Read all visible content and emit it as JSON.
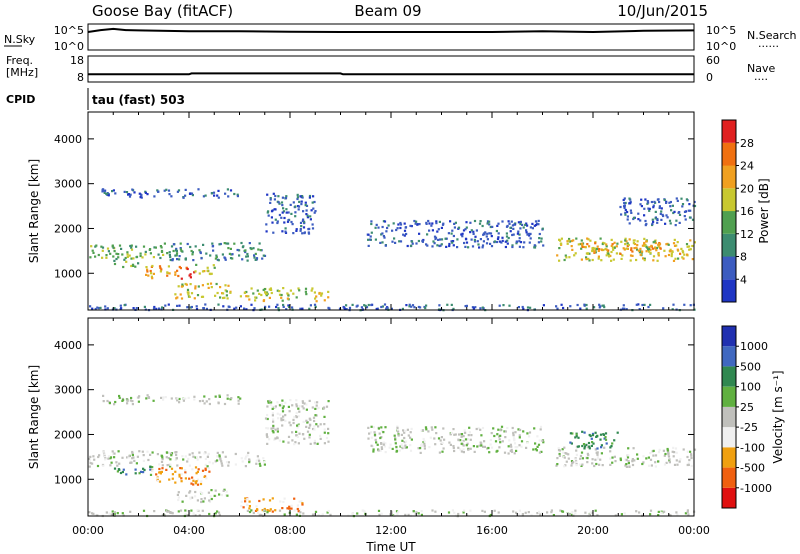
{
  "header": {
    "station": "Goose Bay (fitACF)",
    "beam": "Beam 09",
    "date": "10/Jun/2015"
  },
  "chart_data": [
    {
      "type": "line",
      "panel": "noise",
      "left_label": "N.Sky",
      "right_label": "N.Search",
      "left_ticks": [
        "10^5",
        "10^0"
      ],
      "right_ticks": [
        "10^5",
        "10^0"
      ],
      "note": "",
      "series": [
        {
          "name": "N.Sky",
          "x": [
            0,
            0.5,
            1,
            1.5,
            2,
            4,
            6,
            8,
            10,
            12,
            14,
            16,
            18,
            20,
            22,
            24
          ],
          "y": [
            10000,
            30000,
            60000,
            30000,
            25000,
            15000,
            15000,
            12000,
            10000,
            10000,
            10000,
            10000,
            15000,
            10000,
            20000,
            25000
          ]
        }
      ]
    },
    {
      "type": "line",
      "panel": "frequency",
      "left_label_1": "Freq.",
      "left_label_2": "[MHz]",
      "right_label": "Nave",
      "left_ticks": [
        "18",
        "8"
      ],
      "right_ticks": [
        "60",
        "0"
      ],
      "ylim": [
        8,
        18
      ],
      "series": [
        {
          "name": "Freq.",
          "x": [
            0,
            4,
            4.1,
            10,
            10.1,
            24
          ],
          "y": [
            10.6,
            10.6,
            11.0,
            11.0,
            10.6,
            10.6
          ]
        }
      ]
    },
    {
      "type": "heatmap",
      "panel": "power",
      "cpid_label": "CPID",
      "cpid_value": "tau (fast) 503",
      "ylabel": "Slant Range [km]",
      "y_ticks": [
        "1000",
        "2000",
        "3000",
        "4000"
      ],
      "ylim": [
        180,
        4600
      ],
      "xlim": [
        0,
        24
      ],
      "colorbar_label": "Power [dB]",
      "colorbar_ticks": [
        "4",
        "8",
        "12",
        "16",
        "20",
        "24",
        "28"
      ],
      "colorbar_colors": [
        "#1f36c4",
        "#3c5cc0",
        "#3c8c70",
        "#50a050",
        "#c8c830",
        "#f0a020",
        "#f07010",
        "#e02020"
      ],
      "regions": [
        {
          "t": [
            0,
            3
          ],
          "r": [
            1350,
            1650
          ],
          "level": 3
        },
        {
          "t": [
            3,
            7
          ],
          "r": [
            1300,
            1700
          ],
          "level": 2
        },
        {
          "t": [
            1,
            2
          ],
          "r": [
            1150,
            1400
          ],
          "level": 3
        },
        {
          "t": [
            2.2,
            3.6
          ],
          "r": [
            900,
            1200
          ],
          "level": 5
        },
        {
          "t": [
            3.6,
            4.2
          ],
          "r": [
            900,
            1150
          ],
          "level": 7
        },
        {
          "t": [
            4.2,
            5.1
          ],
          "r": [
            1000,
            1250
          ],
          "level": 4
        },
        {
          "t": [
            3.4,
            5.6
          ],
          "r": [
            450,
            800
          ],
          "level": 4
        },
        {
          "t": [
            6.0,
            9.5
          ],
          "r": [
            400,
            700
          ],
          "level": 4
        },
        {
          "t": [
            7.0,
            9.0
          ],
          "r": [
            1900,
            2800
          ],
          "level": 1
        },
        {
          "t": [
            0,
            24
          ],
          "r": [
            200,
            330
          ],
          "level": 1
        },
        {
          "t": [
            18.5,
            24
          ],
          "r": [
            1300,
            1800
          ],
          "level": 4
        },
        {
          "t": [
            19.5,
            23.5
          ],
          "r": [
            1450,
            1700
          ],
          "level": 5
        },
        {
          "t": [
            11,
            18
          ],
          "r": [
            1600,
            2200
          ],
          "level": 1
        },
        {
          "t": [
            0.5,
            6
          ],
          "r": [
            2700,
            2900
          ],
          "level": 1
        },
        {
          "t": [
            21,
            24
          ],
          "r": [
            2100,
            2700
          ],
          "level": 1
        }
      ]
    },
    {
      "type": "heatmap",
      "panel": "velocity",
      "ylabel": "Slant Range [km]",
      "y_ticks": [
        "1000",
        "2000",
        "3000",
        "4000"
      ],
      "ylim": [
        180,
        4600
      ],
      "xlim": [
        0,
        24
      ],
      "x_ticks": [
        "00:00",
        "04:00",
        "08:00",
        "12:00",
        "16:00",
        "20:00",
        "00:00"
      ],
      "xlabel": "Time UT",
      "colorbar_label": "Velocity [m s⁻¹]",
      "colorbar_ticks": [
        "-1000",
        "-500",
        "-100",
        "-25",
        "25",
        "100",
        "500",
        "1000"
      ],
      "colorbar_colors": [
        "#e01010",
        "#f06010",
        "#f0a010",
        "#f0f0f0",
        "#c0c0bc",
        "#60b040",
        "#308850",
        "#4068c0",
        "#2030b0"
      ],
      "regions": [
        {
          "t": [
            0,
            7
          ],
          "r": [
            1300,
            1650
          ],
          "level": 4
        },
        {
          "t": [
            1,
            2.5
          ],
          "r": [
            1100,
            1300
          ],
          "level": 6
        },
        {
          "t": [
            2.5,
            4.8
          ],
          "r": [
            900,
            1300
          ],
          "level": 2
        },
        {
          "t": [
            3.5,
            5.5
          ],
          "r": [
            500,
            800
          ],
          "level": 4
        },
        {
          "t": [
            6.0,
            8.5
          ],
          "r": [
            300,
            600
          ],
          "level": 2
        },
        {
          "t": [
            7.0,
            9.5
          ],
          "r": [
            1800,
            2800
          ],
          "level": 4
        },
        {
          "t": [
            0,
            24
          ],
          "r": [
            200,
            330
          ],
          "level": 4
        },
        {
          "t": [
            18.5,
            24
          ],
          "r": [
            1300,
            1750
          ],
          "level": 4
        },
        {
          "t": [
            19,
            21
          ],
          "r": [
            1700,
            2100
          ],
          "level": 6
        },
        {
          "t": [
            11,
            18
          ],
          "r": [
            1600,
            2200
          ],
          "level": 4
        },
        {
          "t": [
            0.5,
            6
          ],
          "r": [
            2700,
            2900
          ],
          "level": 4
        }
      ]
    }
  ]
}
